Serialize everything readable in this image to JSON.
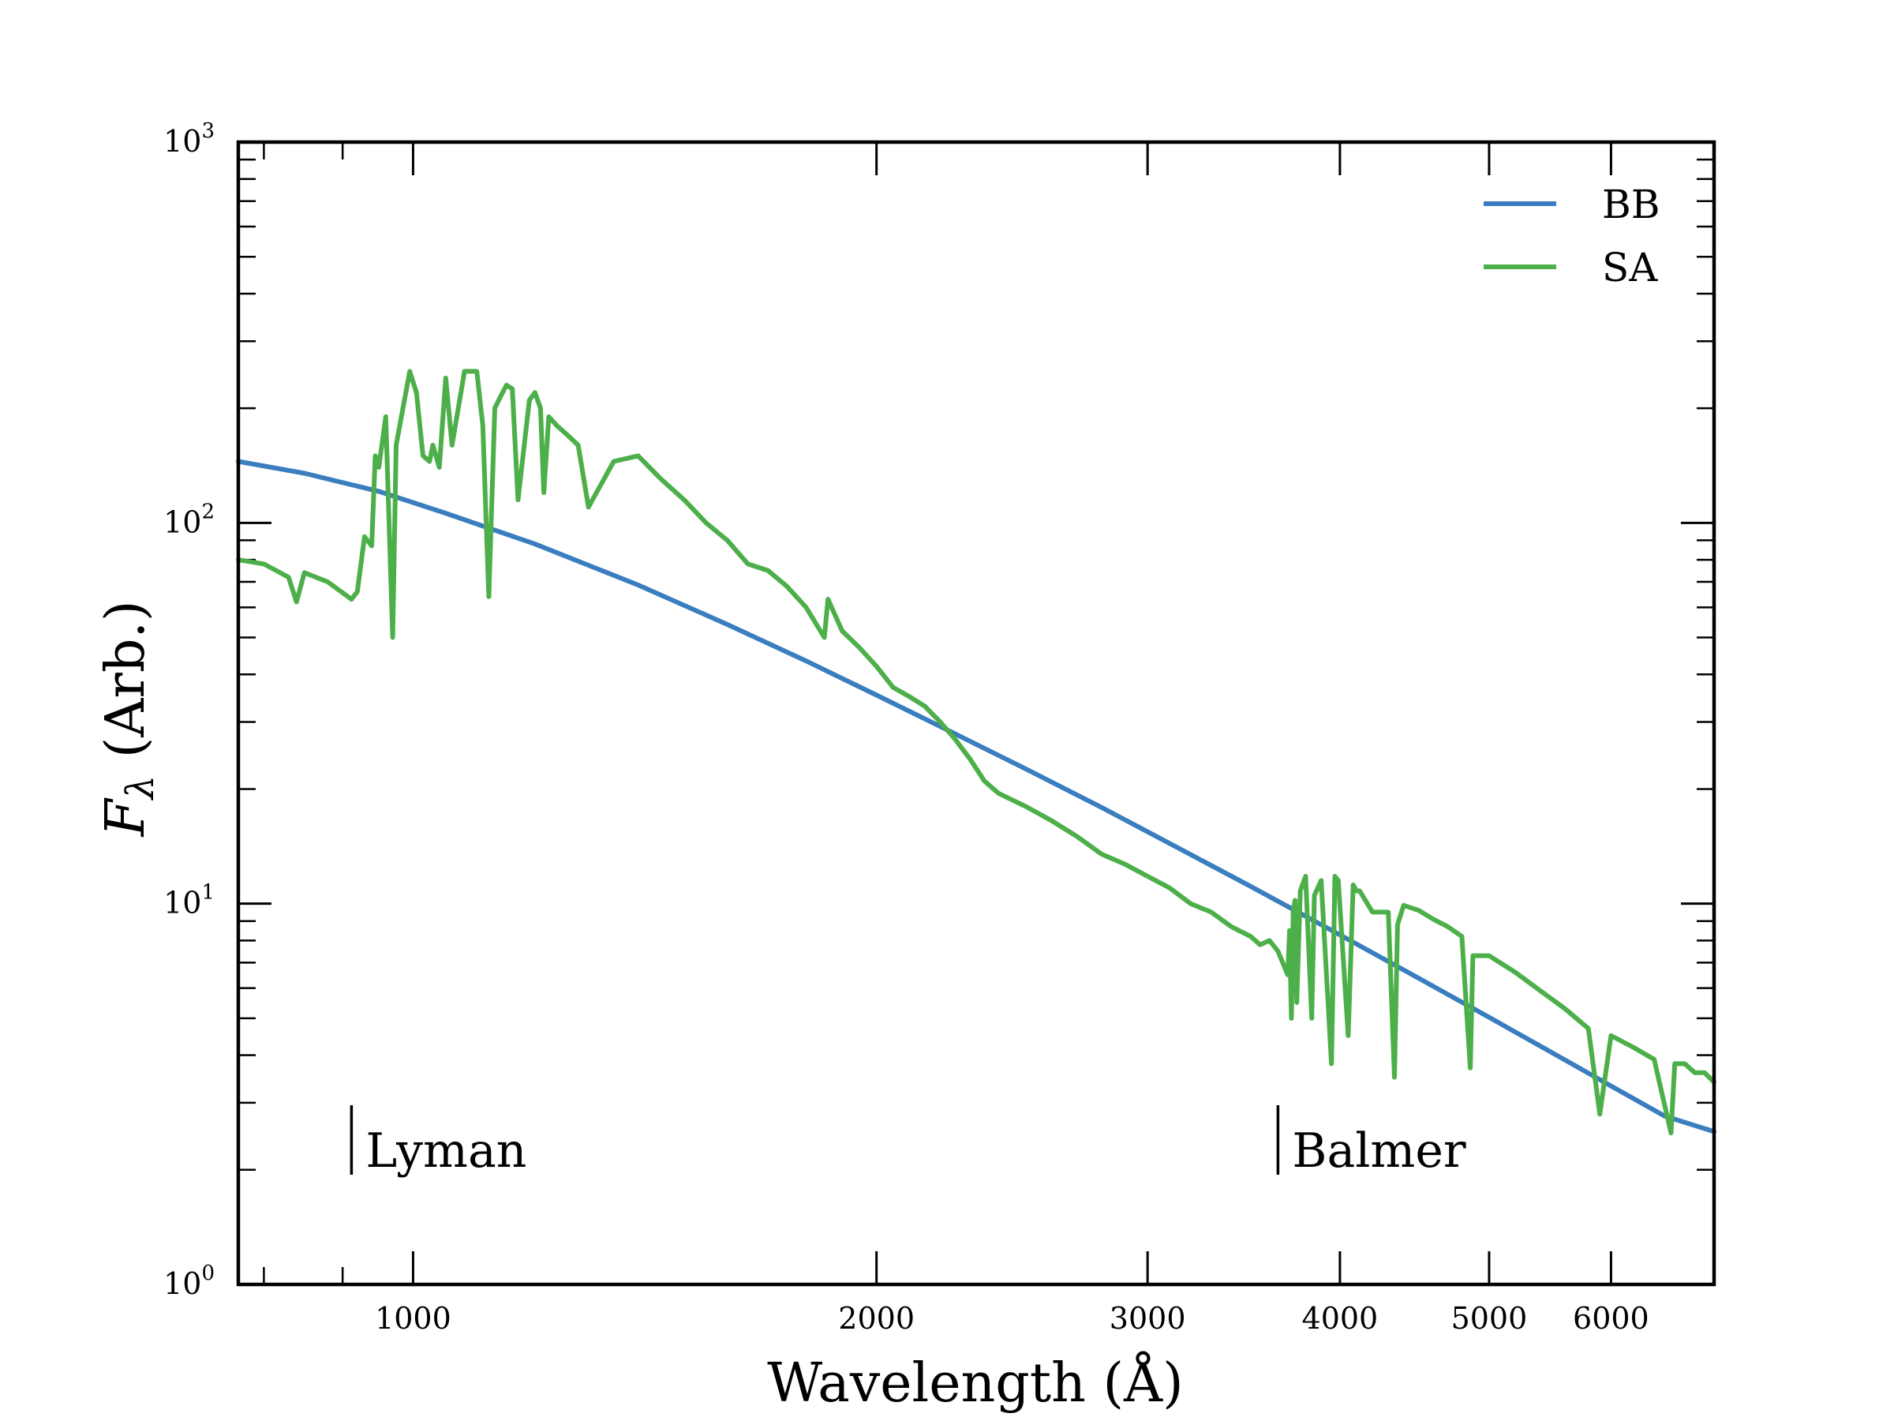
{
  "chart_data": {
    "type": "line",
    "title": "",
    "xlabel": "Wavelength (Å)",
    "ylabel_main": "F",
    "ylabel_sub": "λ",
    "ylabel_rest": " (Arb.)",
    "xscale": "log",
    "yscale": "log",
    "xlim": [
      770,
      7000
    ],
    "ylim": [
      1,
      1000
    ],
    "xticks": [
      1000,
      2000,
      3000,
      4000,
      5000,
      6000
    ],
    "xtick_labels": [
      "1000",
      "2000",
      "3000",
      "4000",
      "5000",
      "6000"
    ],
    "yticks": [
      1,
      10,
      100,
      1000
    ],
    "ytick_labels": [
      {
        "base": "10",
        "exp": "0"
      },
      {
        "base": "10",
        "exp": "1"
      },
      {
        "base": "10",
        "exp": "2"
      },
      {
        "base": "10",
        "exp": "3"
      }
    ],
    "grid": false,
    "legend_position": "top-right",
    "series": [
      {
        "name": "BB",
        "color": "#3a7ebf",
        "x": [
          770,
          850,
          950,
          1050,
          1200,
          1400,
          1600,
          1800,
          2000,
          2200,
          2500,
          2800,
          3100,
          3500,
          4000,
          4500,
          5000,
          5500,
          6000,
          6500,
          7000
        ],
        "y": [
          145,
          135,
          121,
          106,
          88,
          68.7,
          54.1,
          43.4,
          35.3,
          29.2,
          22.6,
          17.9,
          14.4,
          11.1,
          8.28,
          6.37,
          5.03,
          4.05,
          3.32,
          2.77,
          2.52
        ]
      },
      {
        "name": "SA",
        "color": "#4daf4a",
        "x": [
          770,
          800,
          830,
          840,
          850,
          880,
          912,
          920,
          930,
          940,
          945,
          950,
          960,
          970,
          975,
          985,
          995,
          1005,
          1015,
          1025,
          1030,
          1040,
          1050,
          1060,
          1080,
          1100,
          1110,
          1120,
          1130,
          1140,
          1150,
          1160,
          1170,
          1190,
          1200,
          1210,
          1216,
          1225,
          1240,
          1260,
          1280,
          1300,
          1350,
          1400,
          1450,
          1500,
          1550,
          1600,
          1650,
          1700,
          1750,
          1800,
          1850,
          1860,
          1900,
          1950,
          2000,
          2050,
          2100,
          2150,
          2200,
          2250,
          2300,
          2350,
          2400,
          2500,
          2600,
          2700,
          2800,
          2900,
          3000,
          3100,
          3200,
          3300,
          3400,
          3500,
          3550,
          3600,
          3646,
          3700,
          3710,
          3720,
          3730,
          3740,
          3750,
          3770,
          3800,
          3835,
          3850,
          3889,
          3900,
          3950,
          3970,
          3990,
          4050,
          4080,
          4101,
          4120,
          4200,
          4300,
          4340,
          4360,
          4400,
          4500,
          4600,
          4700,
          4800,
          4861,
          4880,
          5000,
          5200,
          5400,
          5600,
          5800,
          5900,
          6000,
          6200,
          6400,
          6563,
          6600,
          6700,
          6800,
          6900,
          7000
        ],
        "y": [
          80,
          78,
          72,
          62,
          74,
          70,
          63,
          66,
          92,
          87,
          150,
          140,
          190,
          50,
          160,
          200,
          250,
          220,
          150,
          145,
          160,
          140,
          240,
          160,
          250,
          250,
          180,
          64,
          200,
          215,
          230,
          225,
          115,
          210,
          220,
          200,
          120,
          190,
          180,
          170,
          160,
          110,
          145,
          150,
          130,
          115,
          100,
          90,
          78,
          75,
          68,
          60,
          50,
          63,
          52,
          47,
          42,
          37,
          35,
          33,
          30,
          27,
          24,
          21,
          19.5,
          18,
          16.5,
          15,
          13.5,
          12.7,
          11.8,
          11,
          10,
          9.5,
          8.7,
          8.2,
          7.8,
          8,
          7.5,
          6.5,
          8.5,
          5,
          9.5,
          10.2,
          5.5,
          10.8,
          11.8,
          5,
          10.5,
          11.5,
          9.5,
          3.8,
          11.8,
          11.5,
          4.5,
          11.2,
          10.8,
          10.8,
          9.5,
          9.5,
          3.5,
          8.8,
          9.9,
          9.6,
          9.1,
          8.7,
          8.2,
          3.7,
          7.3,
          7.3,
          6.6,
          5.9,
          5.3,
          4.7,
          2.8,
          4.5,
          4.2,
          3.9,
          2.5,
          3.8,
          3.8,
          3.6,
          3.6,
          3.4
        ]
      }
    ],
    "annotations": [
      {
        "label": "Lyman",
        "x": 912
      },
      {
        "label": "Balmer",
        "x": 3646
      }
    ]
  }
}
